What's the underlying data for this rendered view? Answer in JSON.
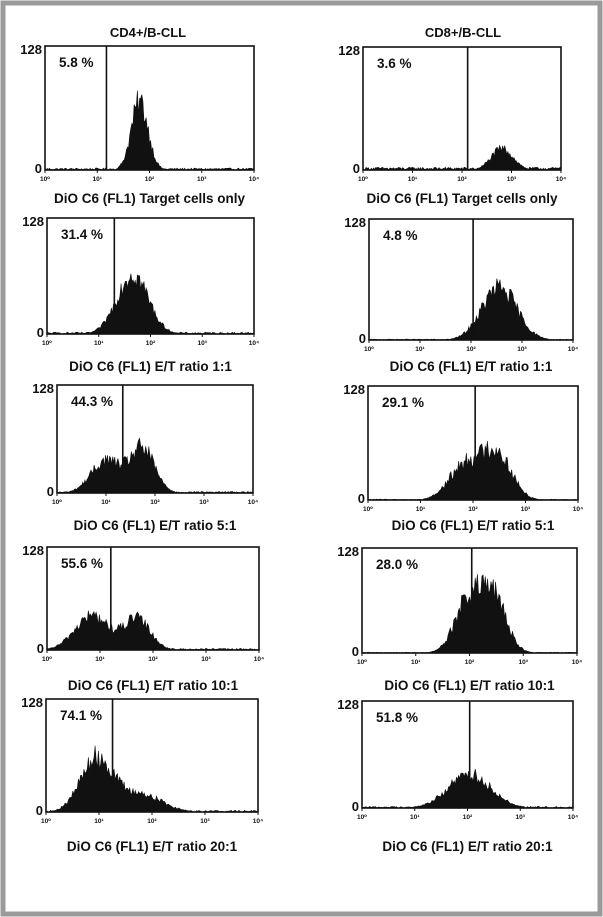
{
  "figure": {
    "frame_color": "#9a9a9a",
    "ink_color": "#111111",
    "columns": [
      "CD4+/B-CLL",
      "CD8+/B-CLL"
    ]
  },
  "chart_data": [
    {
      "type": "area",
      "column": 0,
      "title": "CD4+/B-CLL",
      "xlabel": "DiO C6 (FL1) Target cells only",
      "marker_label": "5.8 %",
      "x_scale": "log",
      "xlim": [
        1,
        10000
      ],
      "ylim": [
        0,
        128
      ],
      "yticks": [
        0,
        128
      ],
      "xticks": [
        "10⁰",
        "10¹",
        "10²",
        "10³",
        "10⁴"
      ],
      "marker_x": 15,
      "peaks": [
        {
          "center": 65,
          "sigma": 0.16,
          "height": 70
        }
      ],
      "baseline": 2
    },
    {
      "type": "area",
      "column": 1,
      "title": "CD8+/B-CLL",
      "xlabel": "DiO C6 (FL1) Target cells only",
      "marker_label": "3.6 %",
      "x_scale": "log",
      "xlim": [
        1,
        10000
      ],
      "ylim": [
        0,
        128
      ],
      "yticks": [
        0,
        128
      ],
      "xticks": [
        "10⁰",
        "10¹",
        "10²",
        "10³",
        "10⁴"
      ],
      "marker_x": 130,
      "peaks": [
        {
          "center": 650,
          "sigma": 0.22,
          "height": 22
        }
      ],
      "baseline": 3
    },
    {
      "type": "area",
      "column": 0,
      "xlabel": "DiO C6 (FL1) E/T ratio 1:1",
      "marker_label": "31.4 %",
      "x_scale": "log",
      "xlim": [
        1,
        10000
      ],
      "ylim": [
        0,
        128
      ],
      "yticks": [
        0,
        128
      ],
      "xticks": [
        "10⁰",
        "10¹",
        "10²",
        "10³",
        "10⁴"
      ],
      "marker_x": 20,
      "peaks": [
        {
          "center": 45,
          "sigma": 0.3,
          "height": 66
        }
      ],
      "baseline": 2
    },
    {
      "type": "area",
      "column": 1,
      "xlabel": "DiO C6 (FL1) E/T ratio 1:1",
      "marker_label": "4.8 %",
      "x_scale": "log",
      "xlim": [
        1,
        10000
      ],
      "ylim": [
        0,
        128
      ],
      "yticks": [
        0,
        128
      ],
      "xticks": [
        "10⁰",
        "10¹",
        "10²",
        "10³",
        "10⁴"
      ],
      "marker_x": 110,
      "peaks": [
        {
          "center": 360,
          "sigma": 0.34,
          "height": 55
        }
      ],
      "baseline": 1
    },
    {
      "type": "area",
      "column": 0,
      "xlabel": "DiO C6 (FL1) E/T ratio 5:1",
      "marker_label": "44.3 %",
      "x_scale": "log",
      "xlim": [
        1,
        10000
      ],
      "ylim": [
        0,
        128
      ],
      "yticks": [
        0,
        128
      ],
      "xticks": [
        "10⁰",
        "10¹",
        "10²",
        "10³",
        "10⁴"
      ],
      "marker_x": 22,
      "peaks": [
        {
          "center": 10,
          "sigma": 0.3,
          "height": 38
        },
        {
          "center": 55,
          "sigma": 0.25,
          "height": 52
        }
      ],
      "baseline": 2
    },
    {
      "type": "area",
      "column": 1,
      "xlabel": "DiO C6 (FL1) E/T ratio 5:1",
      "marker_label": "29.1 %",
      "x_scale": "log",
      "xlim": [
        1,
        10000
      ],
      "ylim": [
        0,
        128
      ],
      "yticks": [
        0,
        128
      ],
      "xticks": [
        "10⁰",
        "10¹",
        "10²",
        "10³",
        "10⁴"
      ],
      "marker_x": 110,
      "peaks": [
        {
          "center": 70,
          "sigma": 0.3,
          "height": 38
        },
        {
          "center": 280,
          "sigma": 0.28,
          "height": 52
        }
      ],
      "baseline": 1
    },
    {
      "type": "area",
      "column": 0,
      "xlabel": "DiO C6 (FL1) E/T ratio 10:1",
      "marker_label": "55.6 %",
      "x_scale": "log",
      "xlim": [
        1,
        10000
      ],
      "ylim": [
        0,
        128
      ],
      "yticks": [
        0,
        128
      ],
      "xticks": [
        "10⁰",
        "10¹",
        "10²",
        "10³",
        "10⁴"
      ],
      "marker_x": 16,
      "peaks": [
        {
          "center": 7,
          "sigma": 0.32,
          "height": 42
        },
        {
          "center": 50,
          "sigma": 0.25,
          "height": 38
        }
      ],
      "baseline": 2
    },
    {
      "type": "area",
      "column": 1,
      "xlabel": "DiO C6 (FL1) E/T ratio 10:1",
      "marker_label": "28.0 %",
      "x_scale": "log",
      "xlim": [
        1,
        10000
      ],
      "ylim": [
        0,
        128
      ],
      "yticks": [
        0,
        128
      ],
      "xticks": [
        "10⁰",
        "10¹",
        "10²",
        "10³",
        "10⁴"
      ],
      "marker_x": 110,
      "peaks": [
        {
          "center": 95,
          "sigma": 0.25,
          "height": 62
        },
        {
          "center": 280,
          "sigma": 0.24,
          "height": 65
        }
      ],
      "baseline": 1
    },
    {
      "type": "area",
      "column": 0,
      "xlabel": "DiO C6 (FL1) E/T ratio 20:1",
      "marker_label": "74.1 %",
      "x_scale": "log",
      "xlim": [
        1,
        10000
      ],
      "ylim": [
        0,
        128
      ],
      "yticks": [
        0,
        128
      ],
      "xticks": [
        "10⁰",
        "10¹",
        "10²",
        "10³",
        "10⁴"
      ],
      "marker_x": 18,
      "peaks": [
        {
          "center": 9,
          "sigma": 0.3,
          "height": 60
        },
        {
          "center": 60,
          "sigma": 0.4,
          "height": 20
        }
      ],
      "baseline": 2
    },
    {
      "type": "area",
      "column": 1,
      "xlabel": "DiO C6 (FL1) E/T ratio 20:1",
      "marker_label": "51.8 %",
      "x_scale": "log",
      "xlim": [
        1,
        10000
      ],
      "ylim": [
        0,
        128
      ],
      "yticks": [
        0,
        128
      ],
      "xticks": [
        "10⁰",
        "10¹",
        "10²",
        "10³",
        "10⁴"
      ],
      "marker_x": 110,
      "peaks": [
        {
          "center": 110,
          "sigma": 0.4,
          "height": 40
        }
      ],
      "baseline": 2
    }
  ]
}
